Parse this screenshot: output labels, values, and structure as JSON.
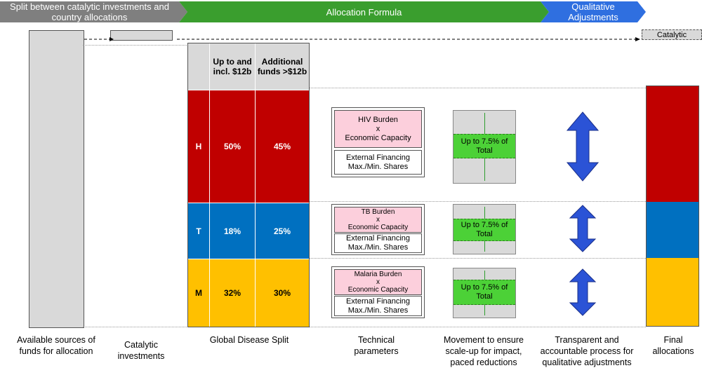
{
  "header": {
    "stage1": "Split between catalytic investments and country allocations",
    "stage2": "Allocation Formula",
    "stage3": "Qualitative Adjustments",
    "catalytic_tag": "Catalytic"
  },
  "table": {
    "col1_header": "Up to and incl. $12b",
    "col2_header": "Additional funds >$12b",
    "rows": [
      {
        "label": "H",
        "col1": "50%",
        "col2": "45%"
      },
      {
        "label": "T",
        "col1": "18%",
        "col2": "25%"
      },
      {
        "label": "M",
        "col1": "32%",
        "col2": "30%"
      }
    ]
  },
  "params": [
    {
      "burden": "HIV Burden",
      "x": "x",
      "capacity": "Economic Capacity",
      "financing": "External Financing Max./Min. Shares"
    },
    {
      "burden": "TB Burden",
      "x": "x",
      "capacity": "Economic Capacity",
      "financing": "External Financing Max./Min. Shares"
    },
    {
      "burden": "Malaria Burden",
      "x": "x",
      "capacity": "Economic Capacity",
      "financing": "External Financing Max./Min. Shares"
    }
  ],
  "movement": [
    {
      "text": "Up to 7.5% of Total"
    },
    {
      "text": "Up to 7.5% of Total"
    },
    {
      "text": "Up to 7.5% of Total"
    }
  ],
  "bottom_labels": {
    "sources": "Available sources of funds for allocation",
    "catalytic": "Catalytic investments",
    "disease_split": "Global Disease Split",
    "technical": "Technical parameters",
    "movement": "Movement to ensure scale-up for impact, paced reductions",
    "transparent": "Transparent and accountable process for qualitative adjustments",
    "final": "Final allocations"
  },
  "colors": {
    "header_gray": "#7f7f7f",
    "header_green": "#3a9e2e",
    "header_blue": "#2f6fe0",
    "hiv_red": "#c00000",
    "tb_blue": "#0070c0",
    "malaria_yellow": "#ffc000",
    "arrow_blue": "#2b53d6",
    "green_band": "#4cd137"
  }
}
